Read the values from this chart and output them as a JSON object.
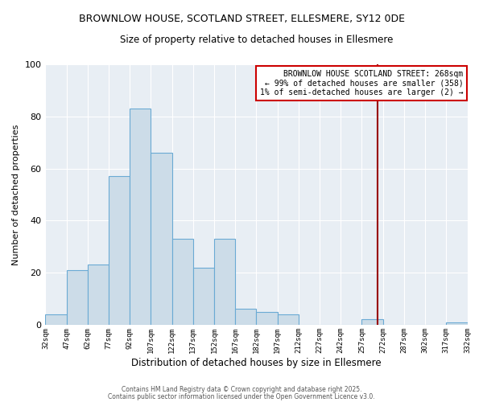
{
  "title": "BROWNLOW HOUSE, SCOTLAND STREET, ELLESMERE, SY12 0DE",
  "subtitle": "Size of property relative to detached houses in Ellesmere",
  "xlabel": "Distribution of detached houses by size in Ellesmere",
  "ylabel": "Number of detached properties",
  "bar_color": "#ccdce8",
  "bar_edge_color": "#6aaad4",
  "plot_bg_color": "#e8eef4",
  "fig_bg_color": "#ffffff",
  "grid_color": "#ffffff",
  "bin_edges": [
    32,
    47,
    62,
    77,
    92,
    107,
    122,
    137,
    152,
    167,
    182,
    197,
    212,
    227,
    242,
    257,
    272,
    287,
    302,
    317,
    332
  ],
  "counts": [
    4,
    21,
    23,
    57,
    83,
    66,
    33,
    22,
    33,
    6,
    5,
    4,
    0,
    0,
    0,
    2,
    0,
    0,
    0,
    1
  ],
  "vline_x": 268,
  "vline_color": "#990000",
  "annotation_line1": "BROWNLOW HOUSE SCOTLAND STREET: 268sqm",
  "annotation_line2": "← 99% of detached houses are smaller (358)",
  "annotation_line3": "1% of semi-detached houses are larger (2) →",
  "annotation_box_color": "#ffffff",
  "annotation_box_edge": "#cc0000",
  "ylim": [
    0,
    100
  ],
  "footer1": "Contains HM Land Registry data © Crown copyright and database right 2025.",
  "footer2": "Contains public sector information licensed under the Open Government Licence v3.0.",
  "tick_labels": [
    "32sqm",
    "47sqm",
    "62sqm",
    "77sqm",
    "92sqm",
    "107sqm",
    "122sqm",
    "137sqm",
    "152sqm",
    "167sqm",
    "182sqm",
    "197sqm",
    "212sqm",
    "227sqm",
    "242sqm",
    "257sqm",
    "272sqm",
    "287sqm",
    "302sqm",
    "317sqm",
    "332sqm"
  ]
}
